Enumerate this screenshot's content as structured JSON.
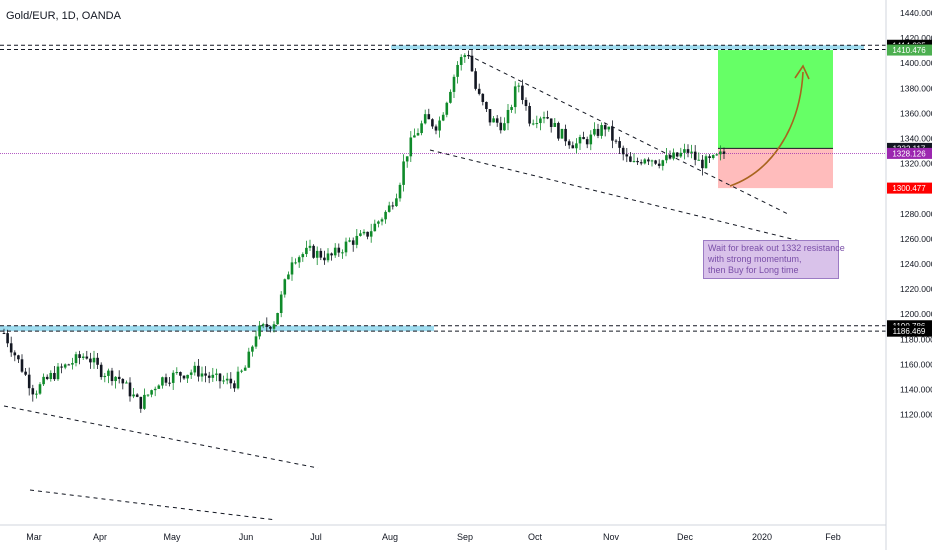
{
  "header": {
    "title": "Gold/EUR, 1D, OANDA"
  },
  "chart_data": {
    "type": "candlestick",
    "symbol": "Gold/EUR",
    "interval": "1D",
    "source": "OANDA",
    "ylim": [
      1110,
      1450
    ],
    "y_ticks": [
      1440,
      1420,
      1400,
      1380,
      1360,
      1340,
      1320,
      1300,
      1280,
      1260,
      1240,
      1220,
      1200,
      1180,
      1160,
      1140,
      1120
    ],
    "x_ticks": [
      "Mar",
      "Apr",
      "May",
      "Jun",
      "Jul",
      "Aug",
      "Sep",
      "Oct",
      "Nov",
      "Dec",
      "2020",
      "Feb"
    ],
    "price_labels": [
      {
        "value": 1414.285,
        "text": "1414.285",
        "bg": "#000000",
        "fg": "#ffffff"
      },
      {
        "value": 1410.928,
        "text": "1410.928",
        "bg": "#000000",
        "fg": "#ffffff"
      },
      {
        "value": 1410.476,
        "text": "1410.476",
        "bg": "#4caf50",
        "fg": "#ffffff"
      },
      {
        "value": 1332.117,
        "text": "1332.117",
        "bg": "#131722",
        "fg": "#ffffff"
      },
      {
        "value": 1328.126,
        "text": "1328.126",
        "bg": "#9c27b0",
        "fg": "#ffffff"
      },
      {
        "value": 1300.477,
        "text": "1300.477",
        "bg": "#ff0000",
        "fg": "#ffffff"
      },
      {
        "value": 1190.786,
        "text": "1190.786",
        "bg": "#000000",
        "fg": "#ffffff"
      },
      {
        "value": 1186.469,
        "text": "1186.469",
        "bg": "#000000",
        "fg": "#ffffff"
      }
    ],
    "trade_setup": {
      "direction": "long",
      "entry": 1332.117,
      "target": 1410.476,
      "stop": 1300.477,
      "current": 1328.126
    },
    "annotation_lines": [
      "Wait for break out 1332 resistance",
      "with strong momentum,",
      "then Buy for Long time"
    ],
    "colors": {
      "up": "#26a69a",
      "up_fill": "#0f8a2a",
      "down": "#131722",
      "resistance_zone": "#9fdcef",
      "profit_zone": "#66ff66",
      "loss_zone": "#ffbcbc",
      "current_line": "#9c27b0",
      "arrow": "#a8641e"
    },
    "grid": false
  }
}
